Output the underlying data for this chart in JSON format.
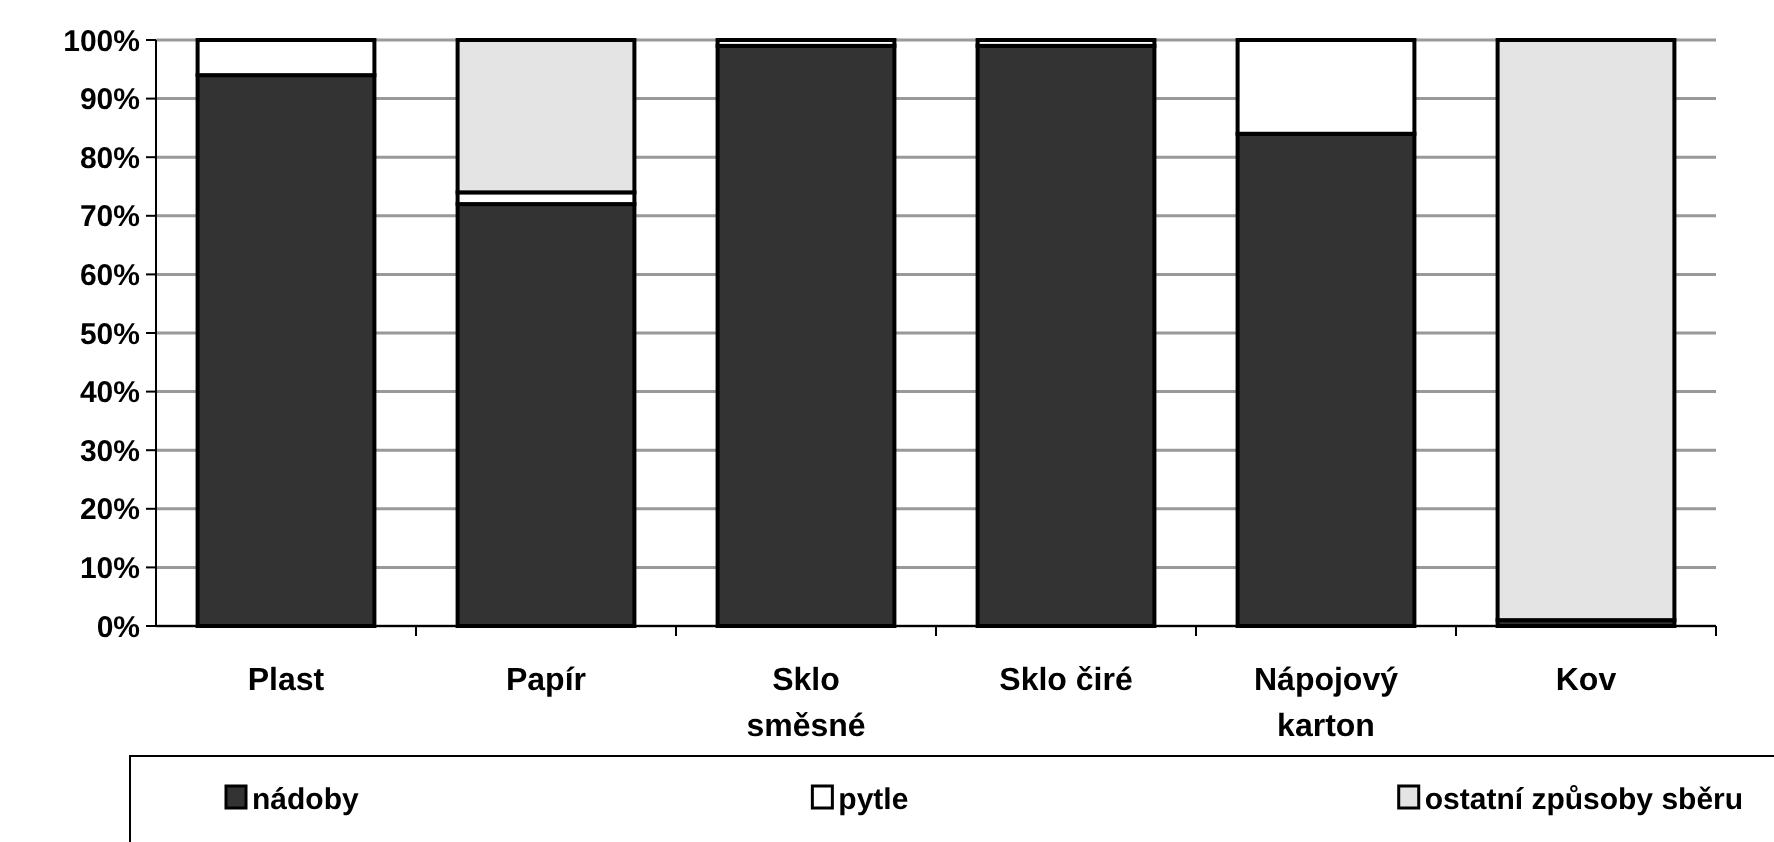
{
  "chart_data": {
    "type": "bar",
    "stacked": true,
    "categories": [
      "Plast",
      "Papír",
      "Sklo směsné",
      "Sklo čiré",
      "Nápojový karton",
      "Kov"
    ],
    "series": [
      {
        "name": "nádoby",
        "color": "#333333",
        "values": [
          94,
          72,
          99,
          99,
          84,
          1
        ]
      },
      {
        "name": "pytle",
        "color": "#ffffff",
        "values": [
          6,
          2,
          1,
          1,
          16,
          0
        ]
      },
      {
        "name": "ostatní způsoby sběru",
        "color": "#e4e4e4",
        "values": [
          0,
          26,
          0,
          0,
          0,
          99
        ]
      }
    ],
    "ylim": [
      0,
      100
    ],
    "yticks": [
      {
        "value": 0,
        "label": "0%"
      },
      {
        "value": 10,
        "label": "10%"
      },
      {
        "value": 20,
        "label": "20%"
      },
      {
        "value": 30,
        "label": "30%"
      },
      {
        "value": 40,
        "label": "40%"
      },
      {
        "value": 50,
        "label": "50%"
      },
      {
        "value": 60,
        "label": "60%"
      },
      {
        "value": 70,
        "label": "70%"
      },
      {
        "value": 80,
        "label": "80%"
      },
      {
        "value": 90,
        "label": "90%"
      },
      {
        "value": 100,
        "label": "100%"
      }
    ],
    "grid": "y",
    "legend": "bottom"
  }
}
